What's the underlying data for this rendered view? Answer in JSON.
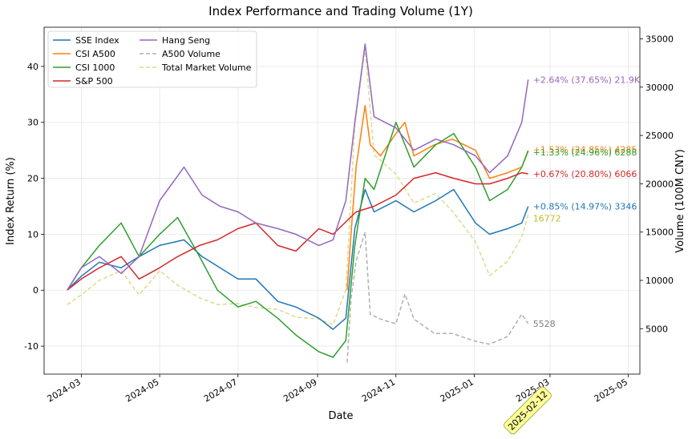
{
  "chart_data": {
    "type": "line",
    "title": "Index Performance and Trading Volume (1Y)",
    "xlabel": "Date",
    "ylabel_left": "Index Return (%)",
    "ylabel_right": "Volume (100M CNY)",
    "x_ticks": [
      "2024-03",
      "2024-05",
      "2024-07",
      "2024-09",
      "2024-11",
      "2025-01",
      "2025-03",
      "2025-05"
    ],
    "y_left_ticks": [
      -10,
      0,
      10,
      20,
      30,
      40
    ],
    "y_right_ticks": [
      5000,
      10000,
      15000,
      20000,
      25000,
      30000,
      35000
    ],
    "ylim_left": [
      -15,
      47
    ],
    "ylim_right": [
      300,
      36200
    ],
    "grid": true,
    "legend_position": "upper left",
    "highlight_label": "2025-02-12",
    "end_labels": [
      {
        "series": "Hang Seng",
        "text": "+2.64% (37.65%) 21.9K",
        "color": "#9467bd",
        "y": 37.65,
        "axis": "left"
      },
      {
        "series": "CSI A500",
        "text": "+1.53% (24.85%) 4285",
        "color": "#ff7f0e",
        "y": 24.85,
        "axis": "left"
      },
      {
        "series": "CSI 1000",
        "text": "+1.33% (24.96%) 6288",
        "color": "#2ca02c",
        "y": 24.96,
        "axis": "left"
      },
      {
        "series": "S&P 500",
        "text": "+0.67% (20.80%) 6066",
        "color": "#d62728",
        "y": 20.8,
        "axis": "left"
      },
      {
        "series": "SSE Index",
        "text": "+0.85% (14.97%) 3346",
        "color": "#1f77b4",
        "y": 14.97,
        "axis": "left"
      },
      {
        "series": "Total Market Volume",
        "text": "16772",
        "color": "#bcbd22",
        "y": 16772,
        "axis": "right"
      },
      {
        "series": "A500 Volume",
        "text": "5528",
        "color": "#7f7f7f",
        "y": 5528,
        "axis": "right"
      }
    ],
    "series": [
      {
        "name": "SSE Index",
        "color": "#1f77b4",
        "axis": "left",
        "x": [
          "2024-02-19",
          "2024-03-01",
          "2024-03-15",
          "2024-04-01",
          "2024-04-15",
          "2024-05-01",
          "2024-05-20",
          "2024-06-03",
          "2024-06-17",
          "2024-07-01",
          "2024-07-15",
          "2024-08-01",
          "2024-08-15",
          "2024-09-02",
          "2024-09-13",
          "2024-09-23",
          "2024-09-30",
          "2024-10-08",
          "2024-10-15",
          "2024-11-01",
          "2024-11-15",
          "2024-12-02",
          "2024-12-16",
          "2025-01-02",
          "2025-01-13",
          "2025-01-27",
          "2025-02-07",
          "2025-02-12"
        ],
        "y": [
          0,
          2.5,
          5,
          4,
          6,
          8,
          9,
          6,
          4,
          2,
          2,
          -2,
          -3,
          -5,
          -7,
          -5,
          11,
          18,
          14,
          16,
          14,
          16,
          18,
          12,
          10,
          11,
          12,
          14.97
        ]
      },
      {
        "name": "CSI A500",
        "color": "#ff7f0e",
        "axis": "left",
        "x": [
          "2024-09-24",
          "2024-09-27",
          "2024-10-01",
          "2024-10-08",
          "2024-10-12",
          "2024-10-20",
          "2024-11-01",
          "2024-11-08",
          "2024-11-15",
          "2024-12-01",
          "2024-12-15",
          "2025-01-02",
          "2025-01-13",
          "2025-01-27",
          "2025-02-07",
          "2025-02-12"
        ],
        "y": [
          0,
          10,
          22,
          33,
          26,
          24,
          28,
          30,
          24,
          26,
          27,
          25,
          20,
          21,
          22,
          24.85
        ]
      },
      {
        "name": "CSI 1000",
        "color": "#2ca02c",
        "axis": "left",
        "x": [
          "2024-02-19",
          "2024-03-01",
          "2024-03-15",
          "2024-04-01",
          "2024-04-15",
          "2024-05-01",
          "2024-05-15",
          "2024-06-01",
          "2024-06-15",
          "2024-07-01",
          "2024-07-15",
          "2024-08-01",
          "2024-08-15",
          "2024-09-02",
          "2024-09-13",
          "2024-09-23",
          "2024-09-30",
          "2024-10-08",
          "2024-10-15",
          "2024-11-01",
          "2024-11-15",
          "2024-12-02",
          "2024-12-16",
          "2025-01-02",
          "2025-01-13",
          "2025-01-27",
          "2025-02-07",
          "2025-02-12"
        ],
        "y": [
          0,
          4,
          8,
          12,
          6,
          10,
          13,
          6,
          0,
          -3,
          -2,
          -5,
          -8,
          -11,
          -12,
          -9,
          8,
          20,
          18,
          30,
          22,
          26,
          28,
          22,
          16,
          18,
          22,
          24.96
        ]
      },
      {
        "name": "S&P 500",
        "color": "#d62728",
        "axis": "left",
        "x": [
          "2024-02-19",
          "2024-03-01",
          "2024-03-15",
          "2024-04-01",
          "2024-04-15",
          "2024-05-01",
          "2024-05-15",
          "2024-06-01",
          "2024-06-15",
          "2024-07-01",
          "2024-07-15",
          "2024-08-01",
          "2024-08-15",
          "2024-09-02",
          "2024-09-13",
          "2024-10-01",
          "2024-10-15",
          "2024-11-01",
          "2024-11-15",
          "2024-12-02",
          "2024-12-16",
          "2025-01-02",
          "2025-01-13",
          "2025-01-27",
          "2025-02-07",
          "2025-02-12"
        ],
        "y": [
          0,
          2,
          4,
          6,
          2,
          4,
          6,
          8,
          9,
          11,
          12,
          8,
          7,
          11,
          10,
          14,
          15,
          17,
          20,
          21,
          20,
          19,
          19,
          20,
          21,
          20.8
        ]
      },
      {
        "name": "Hang Seng",
        "color": "#9467bd",
        "axis": "left",
        "x": [
          "2024-02-19",
          "2024-03-01",
          "2024-03-15",
          "2024-04-01",
          "2024-04-15",
          "2024-05-01",
          "2024-05-20",
          "2024-06-03",
          "2024-06-17",
          "2024-07-01",
          "2024-07-15",
          "2024-08-01",
          "2024-08-15",
          "2024-09-02",
          "2024-09-13",
          "2024-09-23",
          "2024-09-30",
          "2024-10-08",
          "2024-10-15",
          "2024-11-01",
          "2024-11-15",
          "2024-12-02",
          "2024-12-16",
          "2025-01-02",
          "2025-01-13",
          "2025-01-27",
          "2025-02-07",
          "2025-02-12"
        ],
        "y": [
          0,
          4,
          6,
          3,
          6,
          16,
          22,
          17,
          15,
          14,
          12,
          11,
          10,
          8,
          9,
          16,
          30,
          44,
          31,
          29,
          25,
          27,
          26,
          24,
          21,
          24,
          30,
          37.65
        ]
      },
      {
        "name": "A500 Volume",
        "color": "#b0b0b0",
        "axis": "right",
        "style": "dashed",
        "x": [
          "2024-09-24",
          "2024-09-27",
          "2024-10-01",
          "2024-10-08",
          "2024-10-12",
          "2024-10-20",
          "2024-11-01",
          "2024-11-08",
          "2024-11-15",
          "2024-12-01",
          "2024-12-15",
          "2025-01-02",
          "2025-01-13",
          "2025-01-27",
          "2025-02-07",
          "2025-02-12"
        ],
        "y": [
          1500,
          8000,
          12000,
          15000,
          6500,
          6000,
          5500,
          8600,
          6000,
          4500,
          4500,
          3700,
          3400,
          4200,
          6500,
          5528
        ]
      },
      {
        "name": "Total Market Volume",
        "color": "#dbdb8d",
        "axis": "right",
        "style": "dashed",
        "x": [
          "2024-02-19",
          "2024-03-01",
          "2024-03-15",
          "2024-04-01",
          "2024-04-15",
          "2024-05-01",
          "2024-05-15",
          "2024-06-01",
          "2024-06-15",
          "2024-07-01",
          "2024-07-15",
          "2024-08-01",
          "2024-08-15",
          "2024-09-02",
          "2024-09-13",
          "2024-09-23",
          "2024-09-30",
          "2024-10-08",
          "2024-10-15",
          "2024-11-01",
          "2024-11-15",
          "2024-12-02",
          "2024-12-16",
          "2025-01-02",
          "2025-01-13",
          "2025-01-27",
          "2025-02-07",
          "2025-02-12"
        ],
        "y": [
          7500,
          8500,
          10000,
          11000,
          8500,
          11000,
          9500,
          8200,
          7500,
          7600,
          7200,
          7000,
          6200,
          6000,
          5400,
          9000,
          26000,
          34000,
          23000,
          21000,
          18000,
          19000,
          17000,
          14000,
          10500,
          12000,
          14500,
          16772
        ]
      }
    ]
  }
}
